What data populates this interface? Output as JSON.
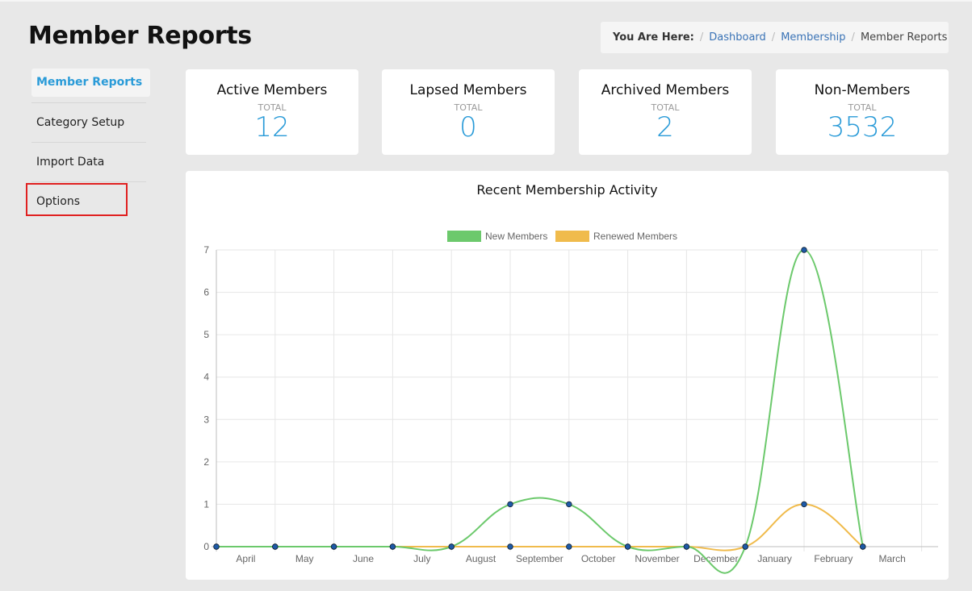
{
  "page": {
    "title": "Member Reports"
  },
  "breadcrumb": {
    "label": "You Are Here:",
    "items": [
      "Dashboard",
      "Membership"
    ],
    "current": "Member Reports"
  },
  "sidebar": {
    "items": [
      {
        "label": "Member Reports",
        "active": true
      },
      {
        "label": "Category Setup"
      },
      {
        "label": "Import Data"
      },
      {
        "label": "Options",
        "highlighted": true
      }
    ]
  },
  "stats": [
    {
      "title": "Active Members",
      "sub": "TOTAL",
      "value": "12"
    },
    {
      "title": "Lapsed Members",
      "sub": "TOTAL",
      "value": "0"
    },
    {
      "title": "Archived Members",
      "sub": "TOTAL",
      "value": "2"
    },
    {
      "title": "Non-Members",
      "sub": "TOTAL",
      "value": "3532"
    }
  ],
  "colors": {
    "accent": "#2a9bd8",
    "new_members": "#6cc96c",
    "renewed_members": "#f0bb4c",
    "point": "#1e5aa8",
    "highlight": "#e02020"
  },
  "chart_data": {
    "type": "line",
    "title": "Recent Membership Activity",
    "categories": [
      "April",
      "May",
      "June",
      "July",
      "August",
      "September",
      "October",
      "November",
      "December",
      "January",
      "February",
      "March"
    ],
    "series": [
      {
        "name": "New Members",
        "values": [
          0,
          0,
          0,
          0,
          0,
          1,
          1,
          0,
          0,
          0,
          7,
          0
        ]
      },
      {
        "name": "Renewed Members",
        "values": [
          0,
          0,
          0,
          0,
          0,
          0,
          0,
          0,
          0,
          0,
          1,
          0
        ]
      }
    ],
    "ylim": [
      0,
      7
    ],
    "yticks": [
      0,
      1,
      2,
      3,
      4,
      5,
      6,
      7
    ],
    "legend": "top-center",
    "grid": true
  }
}
